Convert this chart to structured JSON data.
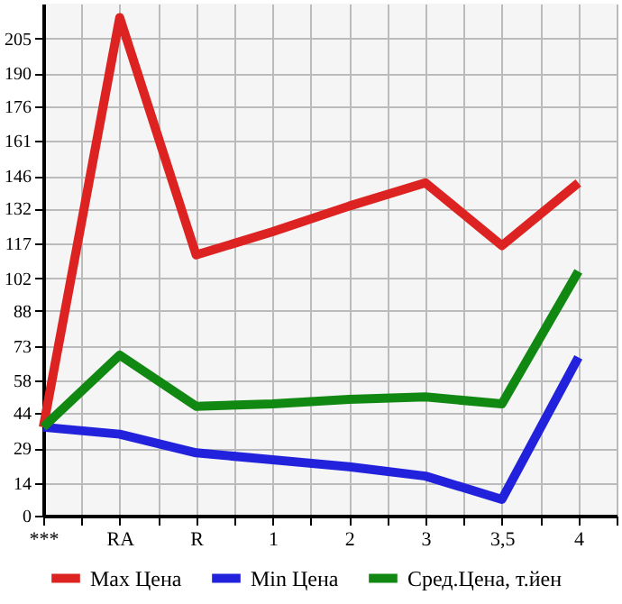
{
  "chart_data": {
    "type": "line",
    "categories": [
      "***",
      "RA",
      "R",
      "1",
      "2",
      "3",
      "3,5",
      "4"
    ],
    "series": [
      {
        "name": "Max Цена",
        "color": "#dd2222",
        "values": [
          38,
          214,
          112,
          122,
          133,
          143,
          116,
          143
        ]
      },
      {
        "name": "Min Цена",
        "color": "#2222dd",
        "values": [
          38,
          35,
          27,
          24,
          21,
          17,
          7,
          68
        ]
      },
      {
        "name": "Сред.Цена, т.йен",
        "color": "#118811",
        "values": [
          38,
          69,
          47,
          48,
          50,
          51,
          48,
          105
        ]
      }
    ],
    "ylim": [
      0,
      220
    ],
    "yticks": [
      0,
      14,
      29,
      44,
      58,
      73,
      88,
      102,
      117,
      132,
      146,
      161,
      176,
      190,
      205
    ],
    "grid": true,
    "legend": "bottom",
    "marker": "none",
    "line_style": "solid"
  }
}
